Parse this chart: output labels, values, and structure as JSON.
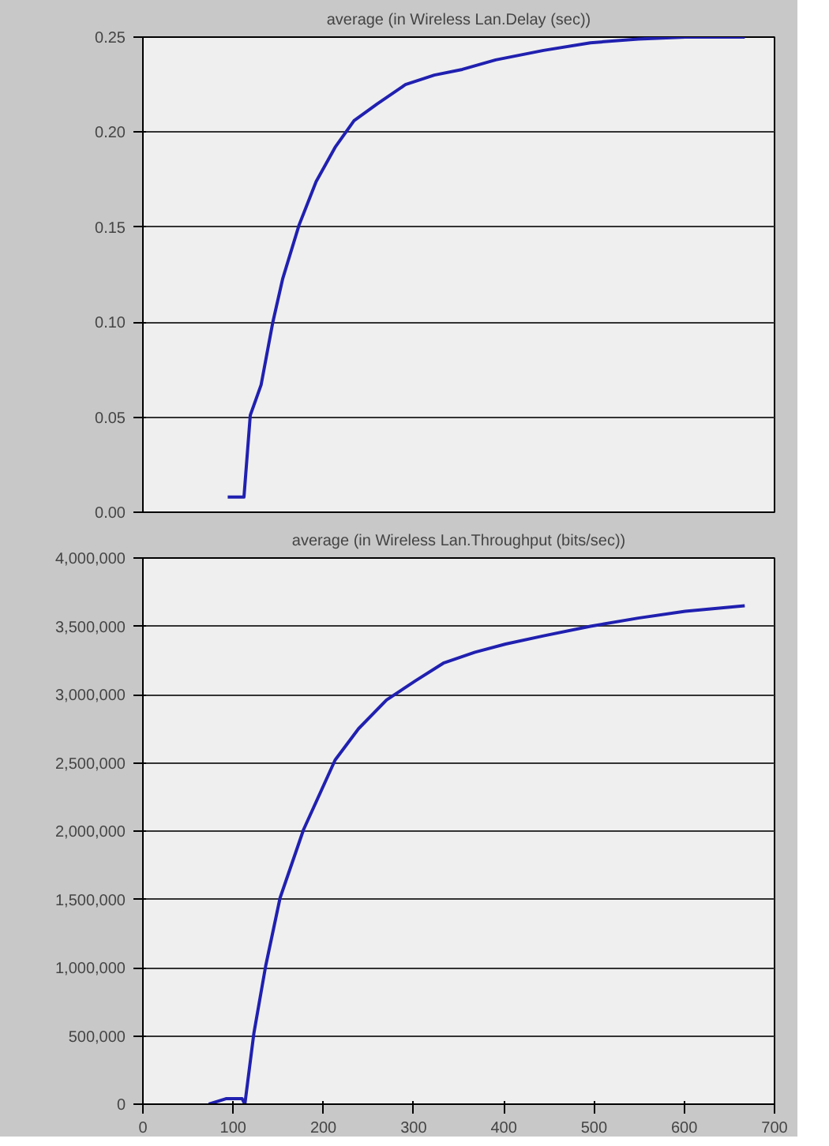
{
  "chart_data": [
    {
      "type": "line",
      "title": "average (in Wireless Lan.Delay (sec))",
      "tick_labels": "y",
      "grid": "y",
      "line_style": "solid",
      "xlim": [
        0,
        700
      ],
      "xticks": [
        0,
        100,
        200,
        300,
        400,
        500,
        600,
        700
      ],
      "ylim": [
        0,
        0.25
      ],
      "yticks": [
        {
          "value": 0,
          "label": "0.00"
        },
        {
          "value": 0.05,
          "label": "0.05"
        },
        {
          "value": 0.1,
          "label": "0.10"
        },
        {
          "value": 0.15,
          "label": "0.15"
        },
        {
          "value": 0.2,
          "label": "0.20"
        },
        {
          "value": 0.25,
          "label": "0.25"
        }
      ],
      "series": [
        {
          "color": "#2020b0",
          "x": [
            94,
            112,
            119,
            131,
            144,
            155,
            173,
            192,
            213,
            234,
            260,
            291,
            323,
            354,
            391,
            444,
            496,
            549,
            601,
            667
          ],
          "values": [
            0.008,
            0.008,
            0.051,
            0.067,
            0.1,
            0.123,
            0.151,
            0.174,
            0.192,
            0.206,
            0.215,
            0.225,
            0.23,
            0.233,
            0.238,
            0.243,
            0.247,
            0.249,
            0.25,
            0.25
          ]
        }
      ]
    },
    {
      "type": "line",
      "title": "average (in Wireless Lan.Throughput (bits/sec))",
      "grid": "y",
      "line_style": "solid",
      "xlim": [
        0,
        700
      ],
      "xticks": [
        0,
        100,
        200,
        300,
        400,
        500,
        600,
        700
      ],
      "ylim": [
        0,
        4000000
      ],
      "yticks": [
        {
          "value": 0,
          "label": "0"
        },
        {
          "value": 500000,
          "label": "500,000"
        },
        {
          "value": 1000000,
          "label": "1,000,000"
        },
        {
          "value": 1500000,
          "label": "1,500,000"
        },
        {
          "value": 2000000,
          "label": "2,000,000"
        },
        {
          "value": 2500000,
          "label": "2,500,000"
        },
        {
          "value": 3000000,
          "label": "3,000,000"
        },
        {
          "value": 3500000,
          "label": "3,500,000"
        },
        {
          "value": 4000000,
          "label": "4,000,000"
        }
      ],
      "series": [
        {
          "color": "#2020b0",
          "x": [
            73,
            92,
            110,
            113,
            123,
            136,
            152,
            178,
            213,
            239,
            270,
            302,
            333,
            368,
            402,
            444,
            496,
            549,
            601,
            667
          ],
          "values": [
            0,
            40000,
            40000,
            0,
            520000,
            1010000,
            1510000,
            2010000,
            2520000,
            2750000,
            2960000,
            3100000,
            3230000,
            3310000,
            3370000,
            3430000,
            3500000,
            3560000,
            3610000,
            3650000
          ]
        }
      ]
    }
  ]
}
